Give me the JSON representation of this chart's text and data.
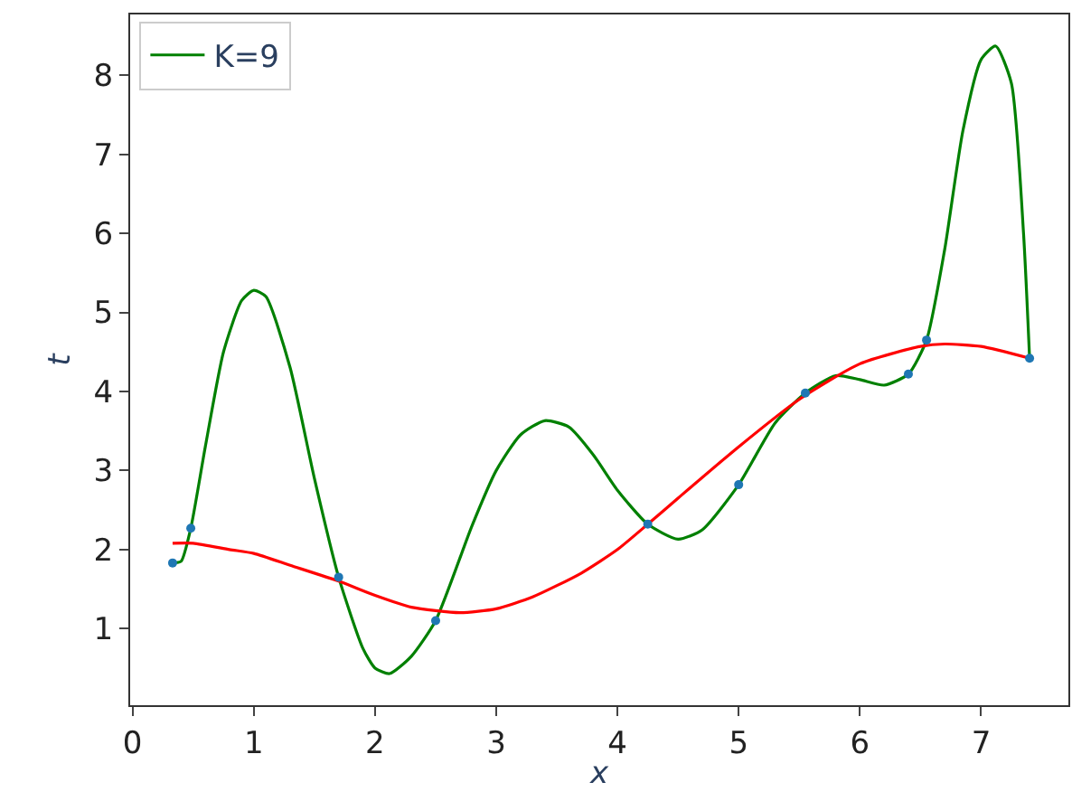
{
  "chart_data": {
    "type": "line",
    "xlabel": "x",
    "ylabel": "t",
    "xlim": [
      -0.02,
      7.72
    ],
    "ylim": [
      0.03,
      8.77
    ],
    "xticks": [
      0,
      1,
      2,
      3,
      4,
      5,
      6,
      7
    ],
    "yticks": [
      1,
      2,
      3,
      4,
      5,
      6,
      7,
      8
    ],
    "legend": "top left",
    "series": [
      {
        "type": "scatter",
        "color": "#1f77b4",
        "marker": "circle",
        "x": [
          0.33,
          0.48,
          1.7,
          2.5,
          4.25,
          5.0,
          5.55,
          6.4,
          6.55,
          7.4
        ],
        "values": [
          1.83,
          2.27,
          1.65,
          1.1,
          2.32,
          2.82,
          3.98,
          4.22,
          4.65,
          4.42
        ]
      },
      {
        "name": "K=9",
        "color": "#008000",
        "x": [
          0.33,
          0.4,
          0.48,
          0.6,
          0.75,
          0.9,
          1.0,
          1.1,
          1.3,
          1.5,
          1.7,
          1.9,
          2.0,
          2.12,
          2.3,
          2.5,
          2.8,
          3.0,
          3.2,
          3.4,
          3.6,
          3.8,
          4.0,
          4.25,
          4.5,
          4.7,
          5.0,
          5.3,
          5.55,
          5.8,
          6.0,
          6.2,
          6.4,
          6.55,
          6.7,
          6.85,
          7.0,
          7.12,
          7.25,
          7.35,
          7.4
        ],
        "values": [
          1.83,
          1.85,
          2.27,
          3.3,
          4.5,
          5.15,
          5.28,
          5.2,
          4.3,
          2.9,
          1.65,
          0.75,
          0.5,
          0.43,
          0.65,
          1.1,
          2.3,
          3.0,
          3.45,
          3.63,
          3.55,
          3.2,
          2.75,
          2.32,
          2.13,
          2.25,
          2.82,
          3.6,
          3.98,
          4.2,
          4.15,
          4.08,
          4.22,
          4.65,
          5.8,
          7.3,
          8.2,
          8.37,
          7.9,
          6.0,
          4.42
        ]
      },
      {
        "color": "#ff0000",
        "x": [
          0.33,
          0.5,
          0.8,
          1.0,
          1.3,
          1.7,
          2.0,
          2.3,
          2.7,
          3.0,
          3.3,
          3.7,
          4.0,
          4.25,
          4.5,
          5.0,
          5.5,
          6.0,
          6.5,
          6.7,
          7.0,
          7.4
        ],
        "values": [
          2.08,
          2.08,
          2.0,
          1.95,
          1.8,
          1.6,
          1.42,
          1.27,
          1.2,
          1.25,
          1.4,
          1.7,
          2.0,
          2.32,
          2.65,
          3.3,
          3.9,
          4.35,
          4.57,
          4.6,
          4.57,
          4.42
        ]
      }
    ]
  }
}
